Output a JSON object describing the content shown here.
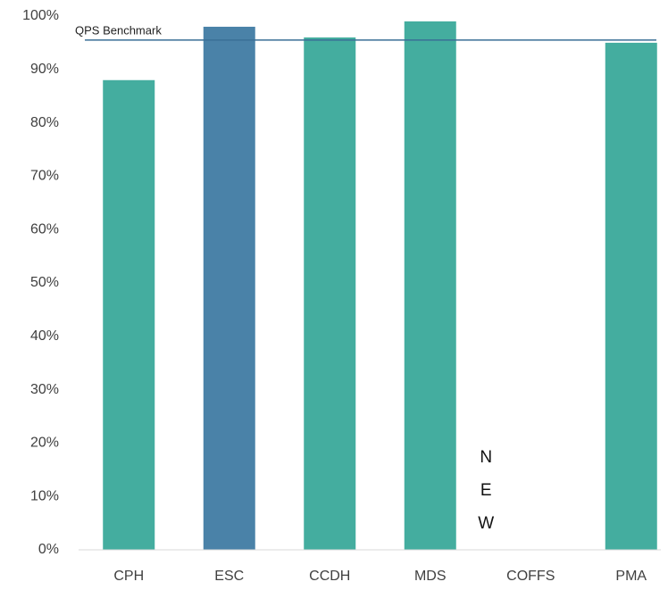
{
  "chart_data": {
    "type": "bar",
    "categories": [
      "CPH",
      "ESC",
      "CCDH",
      "MDS",
      "COFFS",
      "PMA"
    ],
    "values": [
      88,
      98,
      96,
      99,
      null,
      95
    ],
    "colors": [
      "#44ad9f",
      "#4a82a8",
      "#44ad9f",
      "#44ad9f",
      "#44ad9f",
      "#44ad9f"
    ],
    "ylim": [
      0,
      100
    ],
    "yticks": [
      {
        "value": 0,
        "label": "0%"
      },
      {
        "value": 10,
        "label": "10%"
      },
      {
        "value": 20,
        "label": "20%"
      },
      {
        "value": 30,
        "label": "30%"
      },
      {
        "value": 40,
        "label": "40%"
      },
      {
        "value": 50,
        "label": "50%"
      },
      {
        "value": 60,
        "label": "60%"
      },
      {
        "value": 70,
        "label": "70%"
      },
      {
        "value": 80,
        "label": "80%"
      },
      {
        "value": 90,
        "label": "90%"
      },
      {
        "value": 100,
        "label": "100%"
      }
    ],
    "benchmark": {
      "label": "QPS Benchmark",
      "value": 95.5,
      "color": "#3a6f96"
    },
    "annotation": {
      "text": "NEW",
      "category": 4
    },
    "grid": false
  }
}
